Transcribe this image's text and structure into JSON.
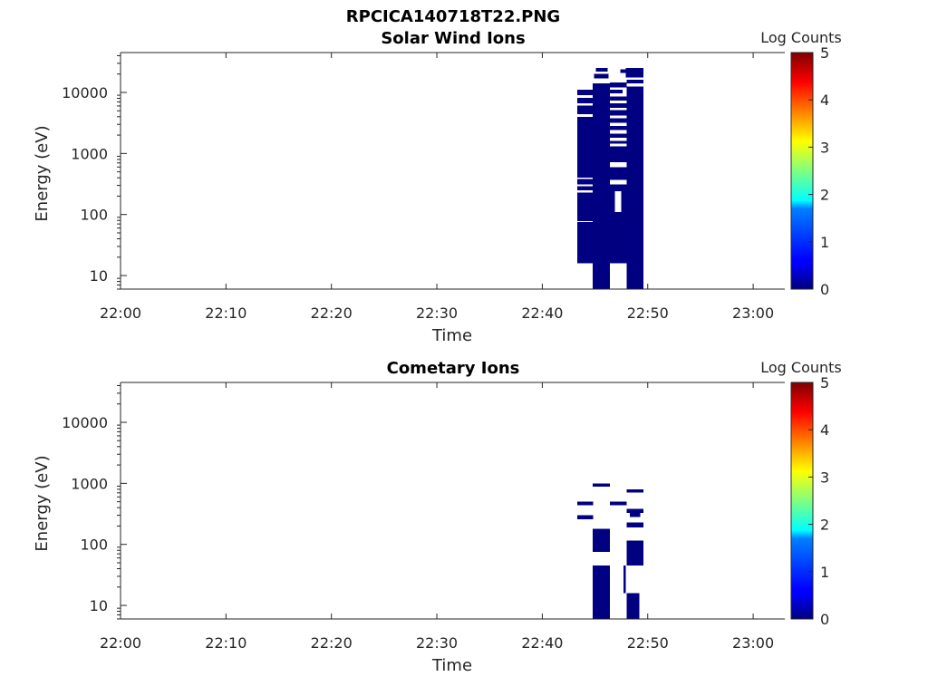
{
  "figure": {
    "title": "RPCICA140718T22.PNG"
  },
  "chart_data": [
    {
      "type": "heatmap",
      "title": "Solar Wind Ions",
      "xlabel": "Time",
      "ylabel": "Energy (eV)",
      "x_unit": "minutes after 22:00",
      "xlim": [
        0,
        63
      ],
      "x_ticks": [
        {
          "value": 0,
          "label": "22:00"
        },
        {
          "value": 10,
          "label": "22:10"
        },
        {
          "value": 20,
          "label": "22:20"
        },
        {
          "value": 30,
          "label": "22:30"
        },
        {
          "value": 40,
          "label": "22:40"
        },
        {
          "value": 50,
          "label": "22:50"
        },
        {
          "value": 60,
          "label": "23:00"
        }
      ],
      "y_scale": "log",
      "ylim": [
        6,
        45000
      ],
      "y_ticks": [
        {
          "value": 10,
          "label": "10"
        },
        {
          "value": 100,
          "label": "100"
        },
        {
          "value": 1000,
          "label": "1000"
        },
        {
          "value": 10000,
          "label": "10000"
        }
      ],
      "colorbar": {
        "label": "Log Counts",
        "range": [
          0,
          5
        ],
        "ticks": [
          "0",
          "1",
          "2",
          "3",
          "4",
          "5"
        ],
        "colormap": "jet"
      },
      "cells": [
        {
          "t0": 43.3,
          "t1": 44.8,
          "e0": 16,
          "e1": 75,
          "v": 0
        },
        {
          "t0": 43.3,
          "t1": 44.8,
          "e0": 78,
          "e1": 230,
          "v": 0
        },
        {
          "t0": 43.3,
          "t1": 44.8,
          "e0": 250,
          "e1": 290,
          "v": 0
        },
        {
          "t0": 43.3,
          "t1": 44.8,
          "e0": 310,
          "e1": 380,
          "v": 0
        },
        {
          "t0": 43.3,
          "t1": 44.8,
          "e0": 400,
          "e1": 4000,
          "v": 0
        },
        {
          "t0": 43.3,
          "t1": 44.8,
          "e0": 4400,
          "e1": 6100,
          "v": 0
        },
        {
          "t0": 43.3,
          "t1": 44.8,
          "e0": 6600,
          "e1": 8200,
          "v": 0
        },
        {
          "t0": 43.3,
          "t1": 44.8,
          "e0": 9000,
          "e1": 11000,
          "v": 0
        },
        {
          "t0": 44.8,
          "t1": 46.4,
          "e0": 6,
          "e1": 14000,
          "v": 0
        },
        {
          "t0": 44.9,
          "t1": 46.3,
          "e0": 17000,
          "e1": 20000,
          "v": 0
        },
        {
          "t0": 45.1,
          "t1": 46.2,
          "e0": 22000,
          "e1": 25000,
          "v": 0
        },
        {
          "t0": 46.4,
          "t1": 48.0,
          "e0": 16,
          "e1": 110,
          "v": 0
        },
        {
          "t0": 46.4,
          "t1": 46.9,
          "e0": 110,
          "e1": 240,
          "v": 0
        },
        {
          "t0": 47.5,
          "t1": 48.0,
          "e0": 110,
          "e1": 240,
          "v": 0
        },
        {
          "t0": 46.4,
          "t1": 48.0,
          "e0": 240,
          "e1": 310,
          "v": 0
        },
        {
          "t0": 46.4,
          "t1": 48.0,
          "e0": 370,
          "e1": 600,
          "v": 0
        },
        {
          "t0": 46.4,
          "t1": 48.0,
          "e0": 720,
          "e1": 1300,
          "v": 0
        },
        {
          "t0": 46.4,
          "t1": 48.0,
          "e0": 1450,
          "e1": 1600,
          "v": 0
        },
        {
          "t0": 46.4,
          "t1": 48.0,
          "e0": 1800,
          "e1": 2100,
          "v": 0
        },
        {
          "t0": 46.4,
          "t1": 48.0,
          "e0": 2400,
          "e1": 2800,
          "v": 0
        },
        {
          "t0": 46.4,
          "t1": 48.0,
          "e0": 3200,
          "e1": 3800,
          "v": 0
        },
        {
          "t0": 46.4,
          "t1": 48.0,
          "e0": 4200,
          "e1": 5100,
          "v": 0
        },
        {
          "t0": 46.4,
          "t1": 48.0,
          "e0": 5600,
          "e1": 6600,
          "v": 0
        },
        {
          "t0": 46.4,
          "t1": 48.0,
          "e0": 7400,
          "e1": 8600,
          "v": 0
        },
        {
          "t0": 46.4,
          "t1": 47.6,
          "e0": 9600,
          "e1": 11000,
          "v": 0
        },
        {
          "t0": 46.4,
          "t1": 48.0,
          "e0": 12000,
          "e1": 14500,
          "v": 0
        },
        {
          "t0": 47.4,
          "t1": 47.9,
          "e0": 21000,
          "e1": 24000,
          "v": 0
        },
        {
          "t0": 48.0,
          "t1": 49.6,
          "e0": 6,
          "e1": 12500,
          "v": 0
        },
        {
          "t0": 48.0,
          "t1": 49.6,
          "e0": 14000,
          "e1": 16000,
          "v": 0
        },
        {
          "t0": 47.9,
          "t1": 49.6,
          "e0": 17500,
          "e1": 25000,
          "v": 0
        }
      ]
    },
    {
      "type": "heatmap",
      "title": "Cometary Ions",
      "xlabel": "Time",
      "ylabel": "Energy (eV)",
      "x_unit": "minutes after 22:00",
      "xlim": [
        0,
        63
      ],
      "x_ticks": [
        {
          "value": 0,
          "label": "22:00"
        },
        {
          "value": 10,
          "label": "22:10"
        },
        {
          "value": 20,
          "label": "22:20"
        },
        {
          "value": 30,
          "label": "22:30"
        },
        {
          "value": 40,
          "label": "22:40"
        },
        {
          "value": 50,
          "label": "22:50"
        },
        {
          "value": 60,
          "label": "23:00"
        }
      ],
      "y_scale": "log",
      "ylim": [
        6,
        45000
      ],
      "y_ticks": [
        {
          "value": 10,
          "label": "10"
        },
        {
          "value": 100,
          "label": "100"
        },
        {
          "value": 1000,
          "label": "1000"
        },
        {
          "value": 10000,
          "label": "10000"
        }
      ],
      "colorbar": {
        "label": "Log Counts",
        "range": [
          0,
          5
        ],
        "ticks": [
          "0",
          "1",
          "2",
          "3",
          "4",
          "5"
        ],
        "colormap": "jet"
      },
      "cells": [
        {
          "t0": 43.3,
          "t1": 44.8,
          "e0": 440,
          "e1": 500,
          "v": 0
        },
        {
          "t0": 43.3,
          "t1": 44.8,
          "e0": 260,
          "e1": 300,
          "v": 0
        },
        {
          "t0": 44.8,
          "t1": 46.4,
          "e0": 890,
          "e1": 1000,
          "v": 0
        },
        {
          "t0": 44.8,
          "t1": 46.4,
          "e0": 75,
          "e1": 180,
          "v": 0
        },
        {
          "t0": 44.8,
          "t1": 46.4,
          "e0": 6,
          "e1": 45,
          "v": 0
        },
        {
          "t0": 46.4,
          "t1": 48.0,
          "e0": 440,
          "e1": 500,
          "v": 0
        },
        {
          "t0": 47.7,
          "t1": 47.9,
          "e0": 16,
          "e1": 45,
          "v": 0
        },
        {
          "t0": 48.0,
          "t1": 49.6,
          "e0": 710,
          "e1": 790,
          "v": 0
        },
        {
          "t0": 48.0,
          "t1": 49.6,
          "e0": 330,
          "e1": 380,
          "v": 0
        },
        {
          "t0": 48.3,
          "t1": 49.3,
          "e0": 280,
          "e1": 330,
          "v": 0
        },
        {
          "t0": 48.0,
          "t1": 49.6,
          "e0": 190,
          "e1": 230,
          "v": 0
        },
        {
          "t0": 48.0,
          "t1": 49.6,
          "e0": 45,
          "e1": 115,
          "v": 0
        },
        {
          "t0": 48.0,
          "t1": 49.2,
          "e0": 6,
          "e1": 16,
          "v": 0
        }
      ]
    }
  ]
}
